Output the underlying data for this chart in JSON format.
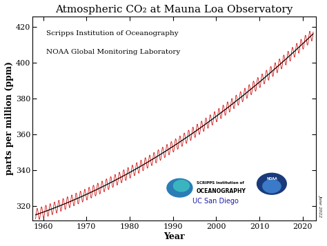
{
  "title": "Atmospheric CO₂ at Mauna Loa Observatory",
  "xlabel": "Year",
  "ylabel": "parts per million (ppm)",
  "text_line1": "Scripps Institution of Oceanography",
  "text_line2": "NOAA Global Monitoring Laboratory",
  "uc_san_diego": "UC San Diego",
  "side_text": "June 2022",
  "xlim": [
    1957.5,
    2023
  ],
  "ylim": [
    312,
    426
  ],
  "yticks": [
    320,
    340,
    360,
    380,
    400,
    420
  ],
  "xticks": [
    1960,
    1970,
    1980,
    1990,
    2000,
    2010,
    2020
  ],
  "background_color": "#ffffff",
  "plot_bg_color": "#ffffff",
  "trend_color": "#000000",
  "seasonal_color": "#cc0000",
  "title_fontsize": 11,
  "label_fontsize": 9,
  "tick_fontsize": 8
}
